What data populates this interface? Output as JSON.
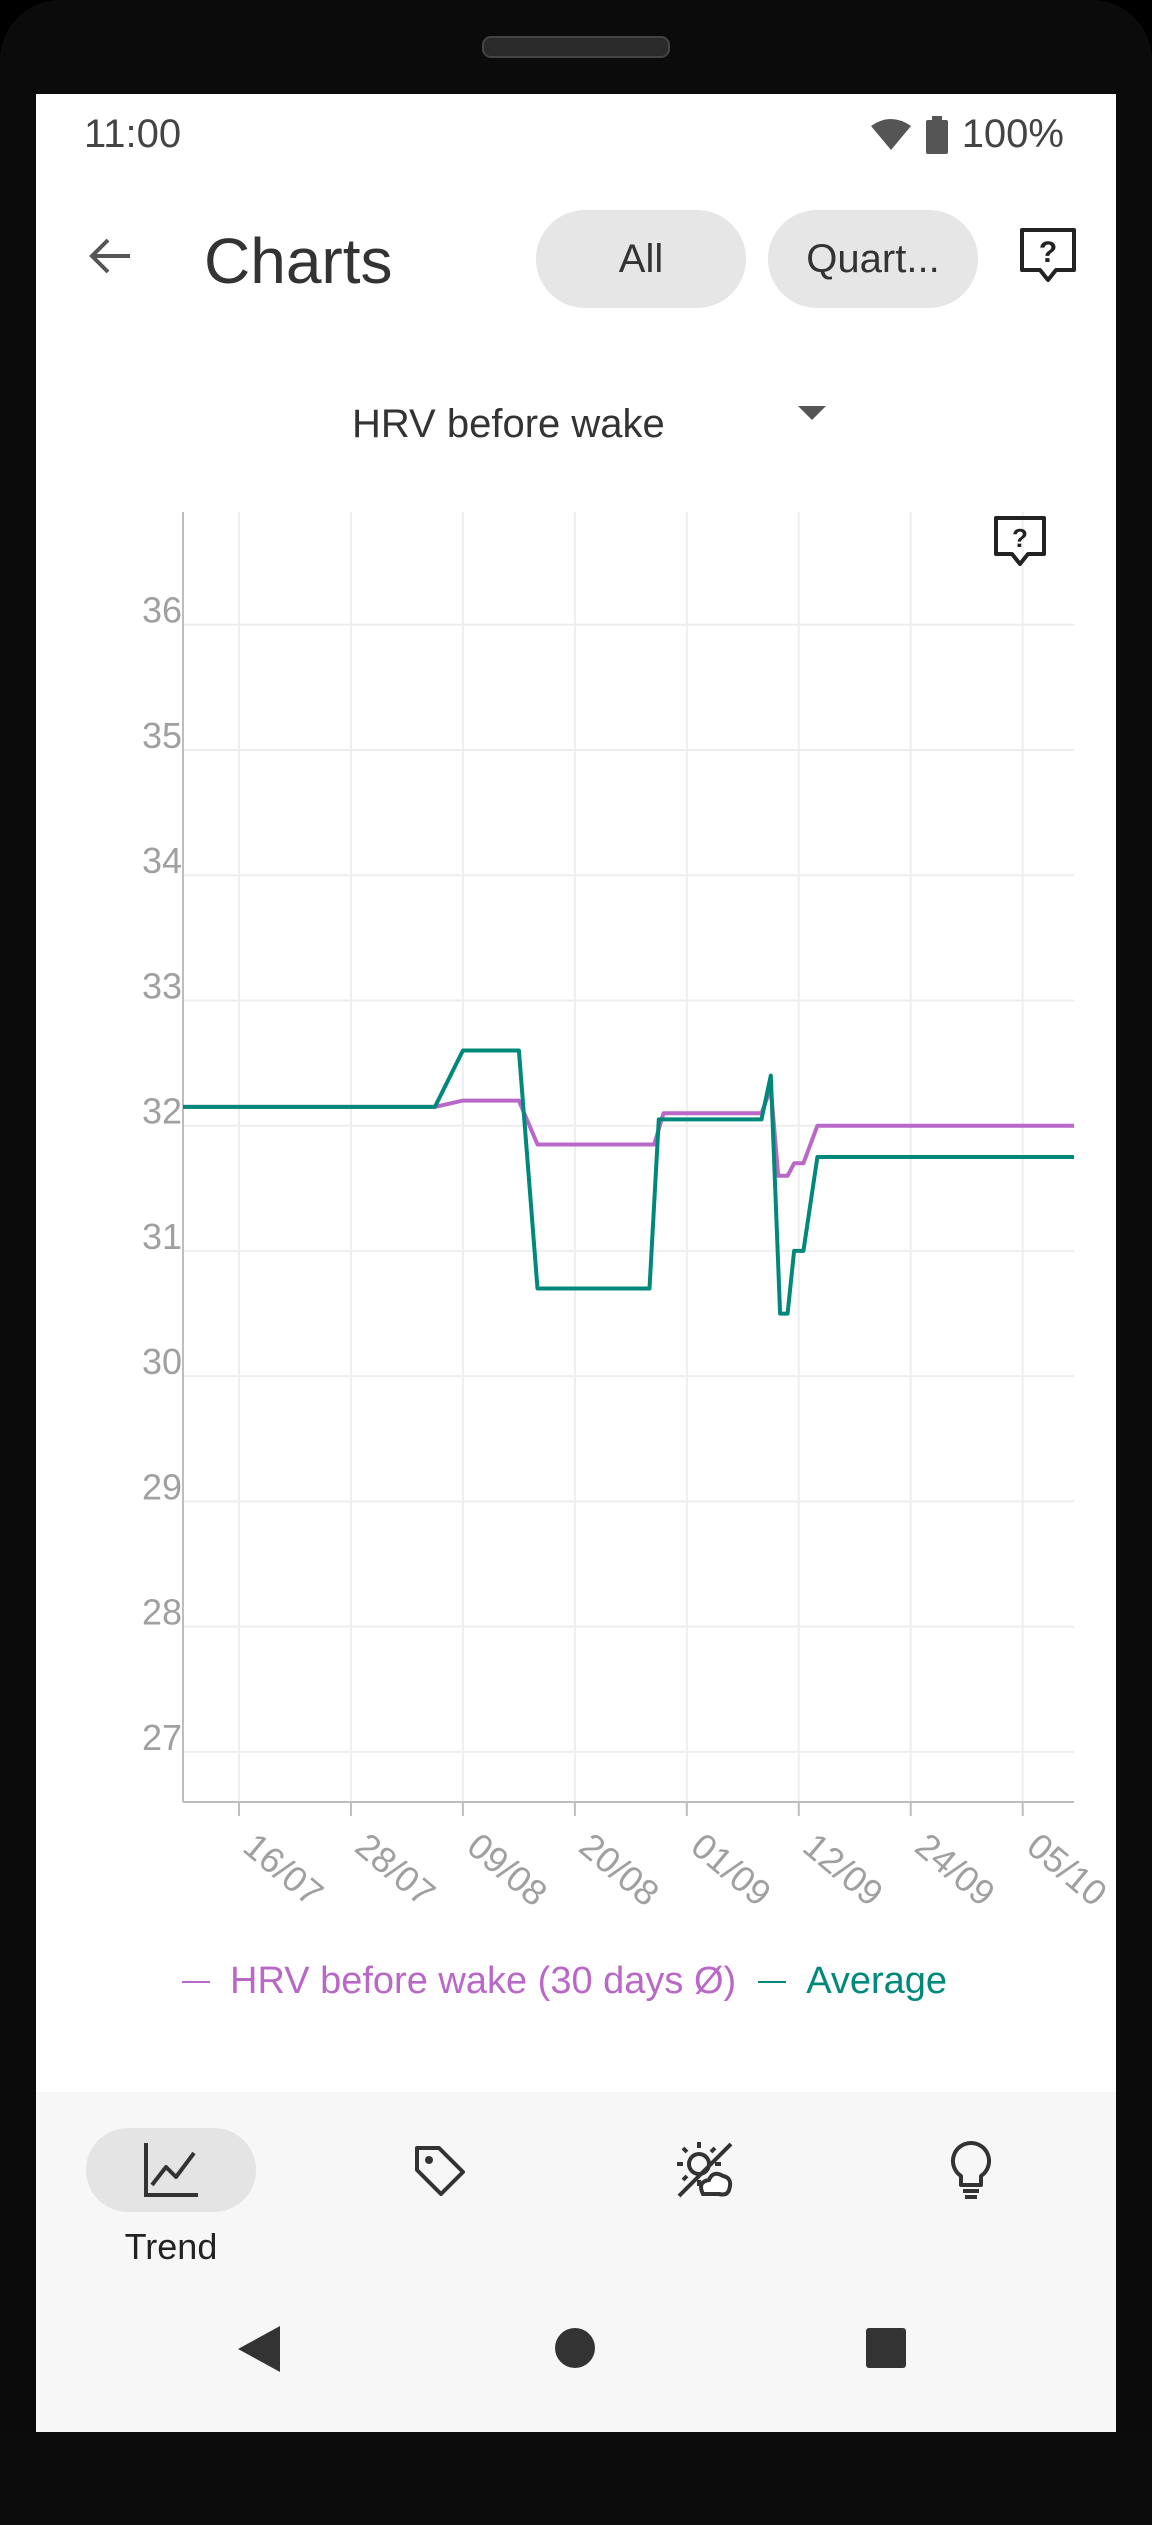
{
  "status_bar": {
    "time": "11:00",
    "battery": "100%"
  },
  "header": {
    "back_icon": "arrow-left-icon",
    "title": "Charts",
    "filter_chips": [
      "All",
      "Quart..."
    ],
    "help_icon": "help-bubble-icon"
  },
  "metric_selector": {
    "value": "HRV before wake",
    "icon": "caret-down-icon"
  },
  "chart_data": {
    "type": "line",
    "title": "",
    "xlabel": "",
    "ylabel": "",
    "ylim": [
      26.6,
      36.9
    ],
    "y_ticks": [
      27,
      28,
      29,
      30,
      31,
      32,
      33,
      34,
      35,
      36
    ],
    "x_ticks": [
      "16/07",
      "28/07",
      "09/08",
      "20/08",
      "01/09",
      "12/09",
      "24/09",
      "05/10"
    ],
    "x_tick_days": [
      12,
      24,
      36,
      48,
      60,
      72,
      84,
      96
    ],
    "x_range_days": [
      6,
      101.5
    ],
    "grid": true,
    "legend_position": "bottom",
    "series": [
      {
        "name": "HRV before wake (30 days Ø)",
        "color": "#BA68C8",
        "points": [
          [
            6,
            32.15
          ],
          [
            33,
            32.15
          ],
          [
            36,
            32.2
          ],
          [
            42,
            32.2
          ],
          [
            44,
            31.85
          ],
          [
            56.5,
            31.85
          ],
          [
            57.5,
            32.1
          ],
          [
            68,
            32.1
          ],
          [
            69,
            32.3
          ],
          [
            69.8,
            31.6
          ],
          [
            70.8,
            31.6
          ],
          [
            71.5,
            31.7
          ],
          [
            72.5,
            31.7
          ],
          [
            74,
            32.0
          ],
          [
            101.5,
            32.0
          ]
        ]
      },
      {
        "name": "Average",
        "color": "#00897B",
        "points": [
          [
            6,
            32.15
          ],
          [
            33,
            32.15
          ],
          [
            36,
            32.6
          ],
          [
            42,
            32.6
          ],
          [
            44,
            30.7
          ],
          [
            56,
            30.7
          ],
          [
            57,
            32.05
          ],
          [
            68,
            32.05
          ],
          [
            69,
            32.4
          ],
          [
            70,
            30.5
          ],
          [
            70.8,
            30.5
          ],
          [
            71.5,
            31.0
          ],
          [
            72.5,
            31.0
          ],
          [
            74,
            31.75
          ],
          [
            101.5,
            31.75
          ]
        ]
      }
    ]
  },
  "bottom_nav": [
    {
      "label": "Trend",
      "icon": "trend-chart-icon",
      "active": true
    },
    {
      "label": "",
      "icon": "tag-icon",
      "active": false
    },
    {
      "label": "",
      "icon": "weather-sun-cloud-icon",
      "active": false
    },
    {
      "label": "",
      "icon": "lightbulb-icon",
      "active": false
    }
  ],
  "system_nav": [
    "back-triangle-icon",
    "home-circle-icon",
    "recents-square-icon"
  ]
}
